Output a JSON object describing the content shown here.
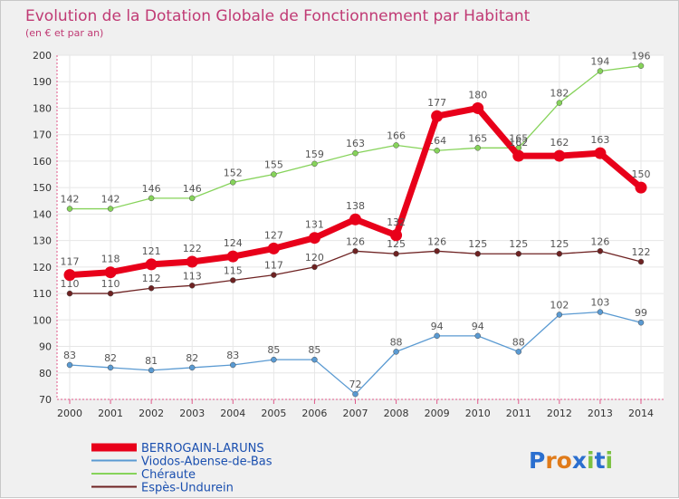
{
  "chart_data": {
    "type": "line",
    "title": "Evolution de la Dotation Globale de Fonctionnement par Habitant",
    "subtitle": "(en € et par an)",
    "x": [
      2000,
      2001,
      2002,
      2003,
      2004,
      2005,
      2006,
      2007,
      2008,
      2009,
      2010,
      2011,
      2012,
      2013,
      2014
    ],
    "ylim": [
      70,
      200
    ],
    "yticks": [
      70,
      80,
      90,
      100,
      110,
      120,
      130,
      140,
      150,
      160,
      170,
      180,
      190,
      200
    ],
    "grid": true,
    "series": [
      {
        "name": "BERROGAIN-LARUNS",
        "color": "#e8001a",
        "bold": true,
        "values": [
          117,
          118,
          121,
          122,
          124,
          127,
          131,
          138,
          132,
          177,
          180,
          162,
          162,
          163,
          150
        ]
      },
      {
        "name": "Viodos-Abense-de-Bas",
        "color": "#5a9ad2",
        "bold": false,
        "values": [
          83,
          82,
          81,
          82,
          83,
          85,
          85,
          72,
          88,
          94,
          94,
          88,
          102,
          103,
          99
        ]
      },
      {
        "name": "Chéraute",
        "color": "#86d35a",
        "bold": false,
        "values": [
          142,
          142,
          146,
          146,
          152,
          155,
          159,
          163,
          166,
          164,
          165,
          165,
          182,
          194,
          196
        ]
      },
      {
        "name": "Espès-Undurein",
        "color": "#6e2222",
        "bold": false,
        "values": [
          110,
          110,
          112,
          113,
          115,
          117,
          120,
          126,
          125,
          126,
          125,
          125,
          125,
          126,
          122
        ]
      }
    ]
  },
  "logo": {
    "text": "Proxiti",
    "letters": [
      "P",
      "r",
      "o",
      "x",
      "i",
      "t",
      "i"
    ],
    "colors": [
      "#2b6fcf",
      "#e07b1a",
      "#e07b1a",
      "#2b6fcf",
      "#7cc142",
      "#2b6fcf",
      "#7cc142"
    ]
  }
}
